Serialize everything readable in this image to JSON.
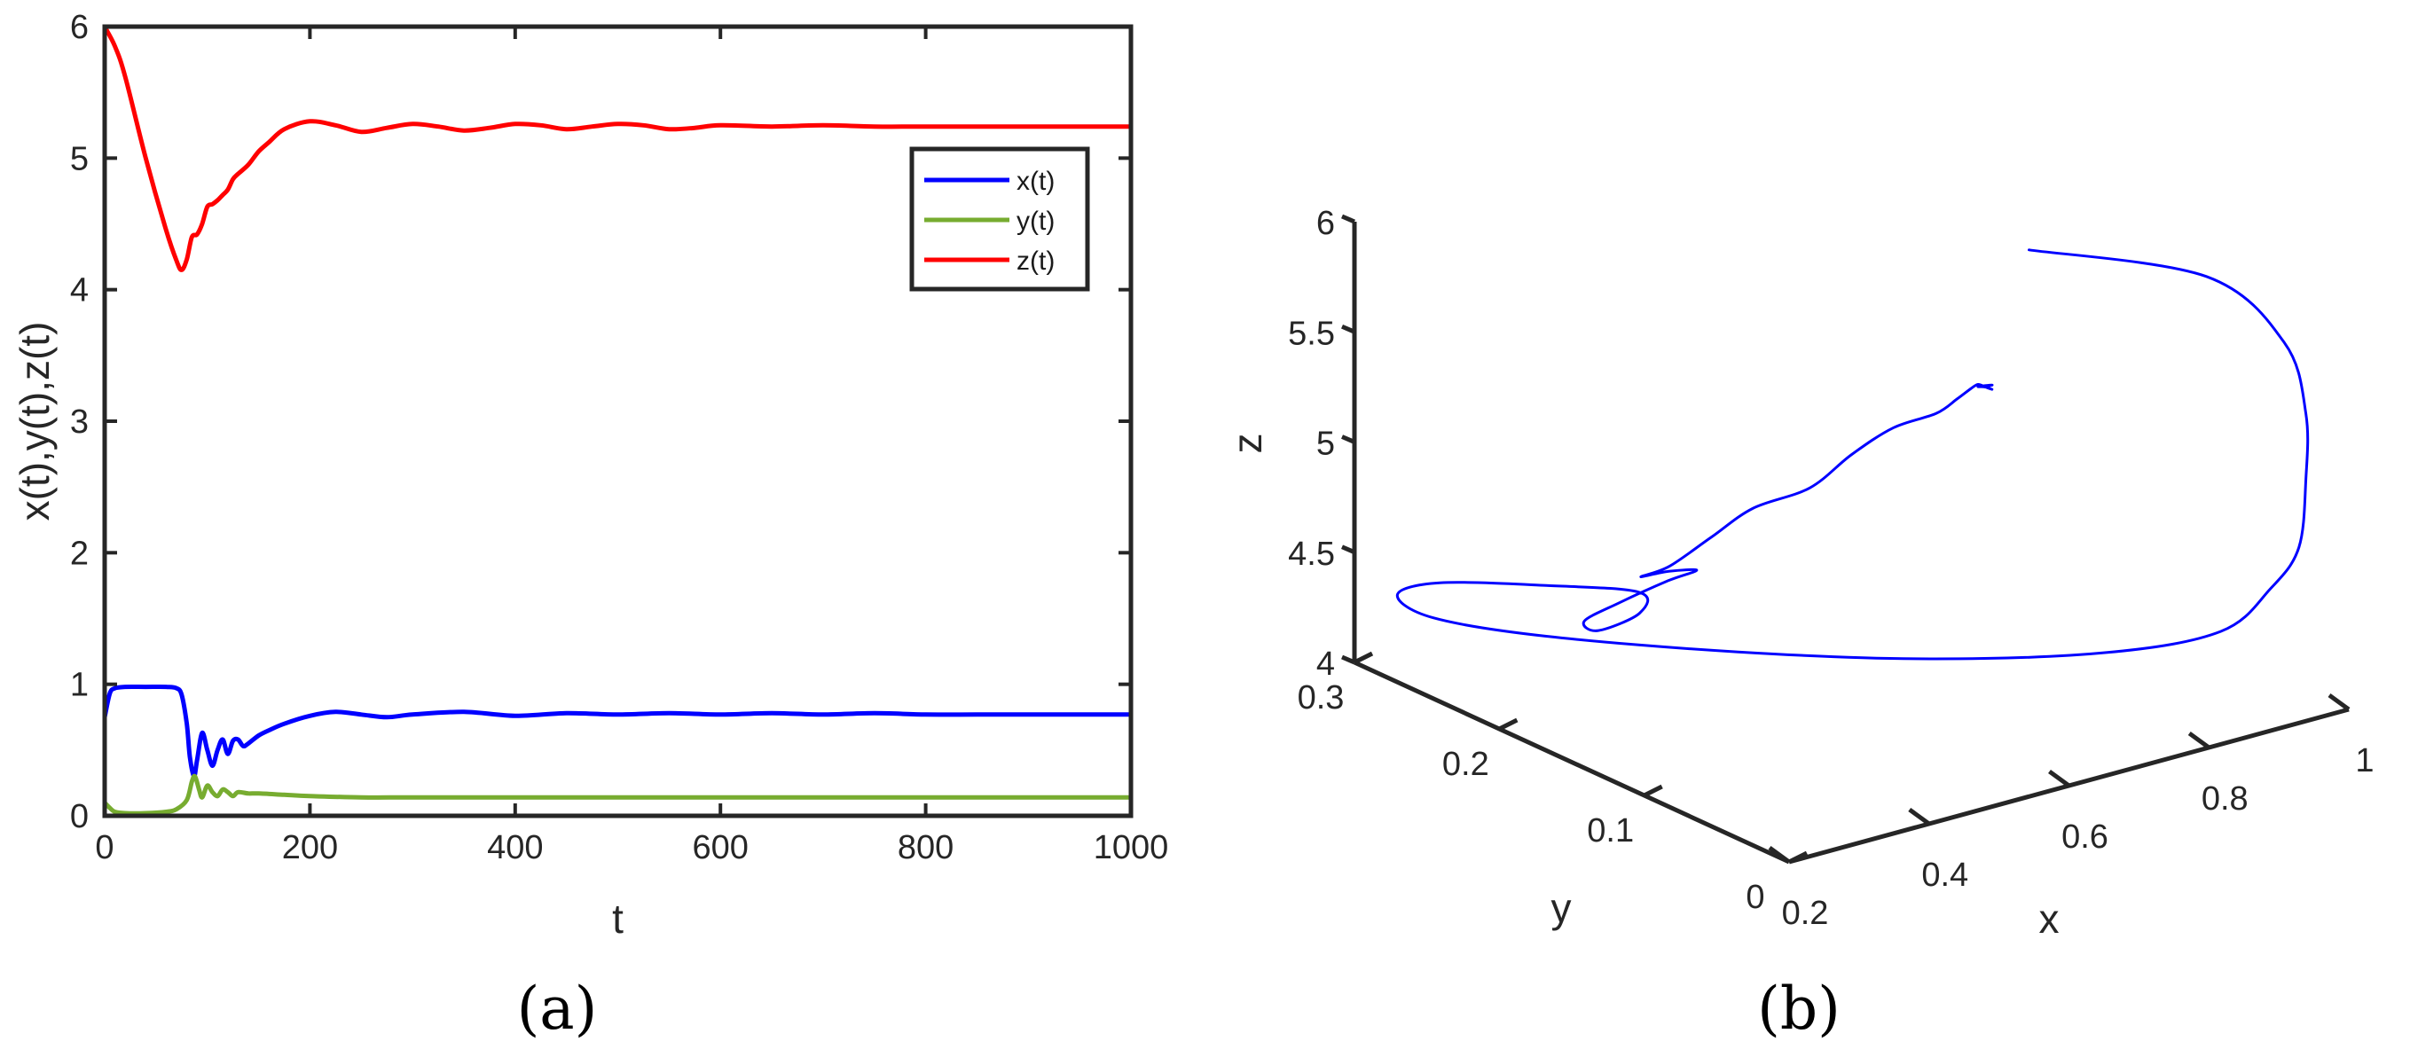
{
  "chart_data": [
    {
      "type": "line",
      "panel_label": "(a)",
      "xlabel": "t",
      "ylabel": "x(t),y(t),z(t)",
      "xlim": [
        0,
        1000
      ],
      "ylim": [
        0,
        6
      ],
      "x_ticks": [
        "0",
        "200",
        "400",
        "600",
        "800",
        "1000"
      ],
      "y_ticks": [
        "0",
        "1",
        "2",
        "3",
        "4",
        "5",
        "6"
      ],
      "grid": false,
      "legend_position": "top-right",
      "series": [
        {
          "name": "x(t)",
          "color": "#0000ff",
          "x": [
            0,
            5,
            10,
            20,
            40,
            60,
            70,
            75,
            80,
            83,
            87,
            90,
            95,
            100,
            105,
            110,
            115,
            120,
            125,
            130,
            135,
            140,
            150,
            160,
            175,
            200,
            225,
            250,
            275,
            300,
            350,
            400,
            450,
            500,
            550,
            600,
            650,
            700,
            750,
            800,
            850,
            900,
            950,
            1000
          ],
          "y": [
            0.75,
            0.93,
            0.97,
            0.98,
            0.98,
            0.98,
            0.97,
            0.92,
            0.7,
            0.45,
            0.3,
            0.42,
            0.63,
            0.5,
            0.38,
            0.5,
            0.58,
            0.47,
            0.57,
            0.58,
            0.53,
            0.55,
            0.61,
            0.65,
            0.7,
            0.76,
            0.79,
            0.77,
            0.75,
            0.77,
            0.79,
            0.76,
            0.78,
            0.77,
            0.78,
            0.77,
            0.78,
            0.77,
            0.78,
            0.77,
            0.77,
            0.77,
            0.77,
            0.77
          ]
        },
        {
          "name": "y(t)",
          "color": "#77ac30",
          "x": [
            0,
            5,
            10,
            20,
            40,
            60,
            70,
            80,
            85,
            88,
            92,
            95,
            100,
            105,
            110,
            115,
            120,
            125,
            130,
            140,
            150,
            175,
            200,
            250,
            300,
            400,
            500,
            600,
            700,
            800,
            900,
            1000
          ],
          "y": [
            0.1,
            0.06,
            0.03,
            0.02,
            0.02,
            0.03,
            0.05,
            0.12,
            0.26,
            0.3,
            0.2,
            0.14,
            0.23,
            0.18,
            0.15,
            0.2,
            0.18,
            0.15,
            0.18,
            0.17,
            0.17,
            0.16,
            0.15,
            0.14,
            0.14,
            0.14,
            0.14,
            0.14,
            0.14,
            0.14,
            0.14,
            0.14
          ]
        },
        {
          "name": "z(t)",
          "color": "#ff0000",
          "x": [
            0,
            10,
            20,
            40,
            60,
            70,
            75,
            80,
            85,
            90,
            95,
            100,
            105,
            110,
            115,
            120,
            125,
            130,
            140,
            150,
            160,
            175,
            200,
            225,
            250,
            275,
            300,
            325,
            350,
            375,
            400,
            425,
            450,
            475,
            500,
            525,
            550,
            575,
            600,
            650,
            700,
            750,
            800,
            850,
            900,
            950,
            1000
          ],
          "y": [
            6.0,
            5.85,
            5.62,
            5.0,
            4.45,
            4.22,
            4.15,
            4.23,
            4.4,
            4.42,
            4.5,
            4.63,
            4.65,
            4.68,
            4.72,
            4.76,
            4.84,
            4.88,
            4.95,
            5.05,
            5.12,
            5.22,
            5.28,
            5.25,
            5.2,
            5.23,
            5.26,
            5.24,
            5.21,
            5.23,
            5.26,
            5.25,
            5.22,
            5.24,
            5.26,
            5.25,
            5.22,
            5.23,
            5.25,
            5.24,
            5.25,
            5.24,
            5.24,
            5.24,
            5.24,
            5.24,
            5.24
          ]
        }
      ]
    },
    {
      "type": "line",
      "projection": "3d",
      "panel_label": "(b)",
      "xlabel": "x",
      "ylabel": "y",
      "zlabel": "z",
      "xlim": [
        0.2,
        1
      ],
      "ylim": [
        0,
        0.3
      ],
      "zlim": [
        4,
        6
      ],
      "x_ticks": [
        "0.2",
        "0.4",
        "0.6",
        "0.8",
        "1"
      ],
      "y_ticks": [
        "0",
        "0.1",
        "0.2",
        "0.3"
      ],
      "z_ticks": [
        "4",
        "4.5",
        "5",
        "5.5",
        "6"
      ],
      "grid": false,
      "series": [
        {
          "color": "#0000ff",
          "x": [
            0.75,
            0.9,
            0.97,
            0.98,
            0.98,
            0.97,
            0.95,
            0.9,
            0.8,
            0.65,
            0.5,
            0.35,
            0.25,
            0.22,
            0.26,
            0.35,
            0.42,
            0.38,
            0.3,
            0.28,
            0.33,
            0.4,
            0.42,
            0.38,
            0.34,
            0.36,
            0.42,
            0.48,
            0.54,
            0.6,
            0.66,
            0.7,
            0.73,
            0.75,
            0.76,
            0.77,
            0.78,
            0.77,
            0.76,
            0.78,
            0.77,
            0.77
          ],
          "y": [
            0.1,
            0.05,
            0.03,
            0.02,
            0.02,
            0.02,
            0.03,
            0.04,
            0.07,
            0.12,
            0.18,
            0.24,
            0.27,
            0.28,
            0.27,
            0.24,
            0.21,
            0.19,
            0.18,
            0.18,
            0.18,
            0.18,
            0.17,
            0.17,
            0.17,
            0.16,
            0.16,
            0.16,
            0.15,
            0.15,
            0.15,
            0.14,
            0.14,
            0.14,
            0.14,
            0.14,
            0.14,
            0.14,
            0.14,
            0.14,
            0.14,
            0.14
          ],
          "z": [
            6.0,
            5.9,
            5.6,
            5.3,
            5.0,
            4.7,
            4.5,
            4.32,
            4.22,
            4.17,
            4.15,
            4.17,
            4.25,
            4.35,
            4.4,
            4.4,
            4.4,
            4.4,
            4.42,
            4.48,
            4.52,
            4.56,
            4.62,
            4.65,
            4.66,
            4.72,
            4.8,
            4.88,
            4.95,
            5.05,
            5.12,
            5.18,
            5.22,
            5.25,
            5.26,
            5.24,
            5.22,
            5.24,
            5.25,
            5.24,
            5.24,
            5.24
          ]
        }
      ]
    }
  ]
}
